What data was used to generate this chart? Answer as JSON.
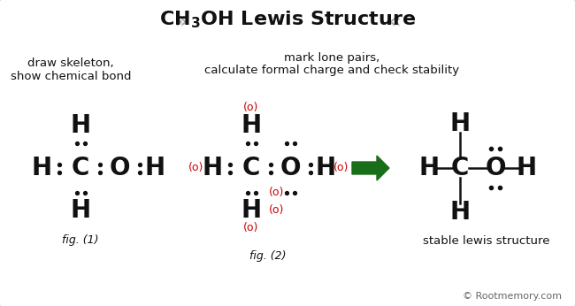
{
  "bg_color": "#ffffff",
  "border_color": "#bbbbbb",
  "text_color": "#111111",
  "red_color": "#cc0000",
  "green_color": "#1a6e1a",
  "gray_color": "#aaaaaa",
  "copyright_color": "#666666",
  "figsize": [
    6.5,
    3.46
  ],
  "dpi": 100,
  "title": "CH$_3$OH Lewis Structure",
  "desc_left_1": "draw skeleton,",
  "desc_left_2": "show chemical bond",
  "desc_mid_1": "mark lone pairs,",
  "desc_mid_2": "calculate formal charge and check stability",
  "fig1_label": "fig. (1)",
  "fig2_label": "fig. (2)",
  "stable_label": "stable lewis structure",
  "copyright": "© Rootmemory.com"
}
